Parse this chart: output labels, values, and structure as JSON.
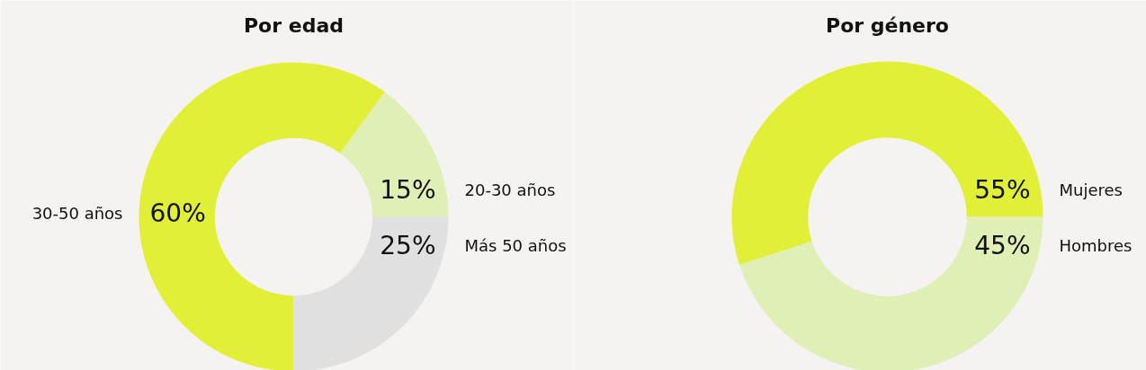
{
  "chart_data": [
    {
      "type": "donut",
      "title": "Por edad",
      "categories": [
        "20-30 años",
        "30-50 años",
        "Más 50 años"
      ],
      "values": [
        15,
        60,
        25
      ],
      "colors": [
        "#e0efb5",
        "#e1ef36",
        "#e0e0e0"
      ],
      "value_labels": [
        "15%",
        "60%",
        "25%"
      ]
    },
    {
      "type": "donut",
      "title": "Por género",
      "categories": [
        "Mujeres",
        "Hombres"
      ],
      "values": [
        55,
        45
      ],
      "colors": [
        "#e1ef36",
        "#e0efb5"
      ],
      "value_labels": [
        "55%",
        "45%"
      ]
    }
  ]
}
